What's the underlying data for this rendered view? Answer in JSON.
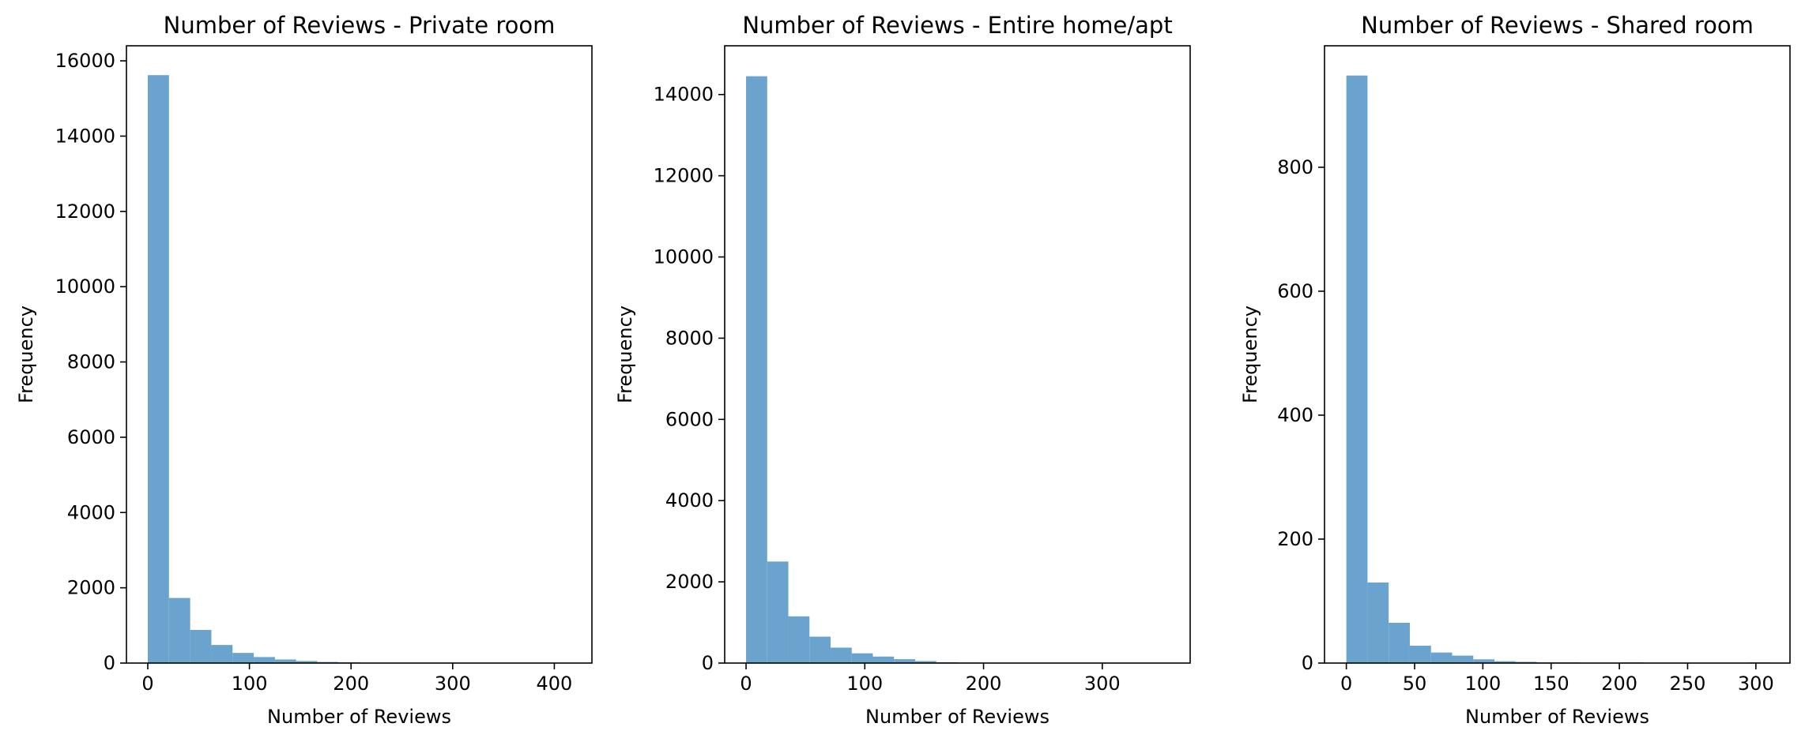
{
  "chart_data": [
    {
      "type": "bar",
      "title": "Number of Reviews - Private room",
      "xlabel": "Number of Reviews",
      "ylabel": "Frequency",
      "xlim": [
        -21,
        437
      ],
      "ylim": [
        0,
        16400
      ],
      "xticks": [
        0,
        100,
        200,
        300,
        400
      ],
      "yticks": [
        0,
        2000,
        4000,
        6000,
        8000,
        10000,
        12000,
        14000,
        16000
      ],
      "bin_width": 20.85,
      "bins_start": 0,
      "values": [
        15620,
        1730,
        880,
        480,
        270,
        160,
        95,
        55,
        30,
        18,
        10,
        6,
        4,
        3,
        2,
        1,
        1,
        1,
        0,
        1
      ],
      "color": "#6aa3cd"
    },
    {
      "type": "bar",
      "title": "Number of Reviews - Entire home/apt",
      "xlabel": "Number of Reviews",
      "ylabel": "Frequency",
      "xlim": [
        -18,
        374
      ],
      "ylim": [
        0,
        15200
      ],
      "xticks": [
        0,
        100,
        200,
        300
      ],
      "yticks": [
        0,
        2000,
        4000,
        6000,
        8000,
        10000,
        12000,
        14000
      ],
      "bin_width": 17.8,
      "bins_start": 0,
      "values": [
        14450,
        2500,
        1150,
        650,
        380,
        240,
        160,
        95,
        50,
        20,
        12,
        8,
        5,
        3,
        2,
        1,
        1,
        1,
        0,
        1
      ],
      "color": "#6aa3cd"
    },
    {
      "type": "bar",
      "title": "Number of Reviews - Shared room",
      "xlabel": "Number of Reviews",
      "ylabel": "Frequency",
      "xlim": [
        -16,
        325
      ],
      "ylim": [
        0,
        996
      ],
      "xticks": [
        0,
        50,
        100,
        150,
        200,
        250,
        300
      ],
      "yticks": [
        0,
        200,
        400,
        600,
        800
      ],
      "bin_width": 15.5,
      "bins_start": 0,
      "values": [
        948,
        130,
        65,
        28,
        17,
        12,
        6,
        3,
        2,
        1,
        1,
        0,
        0,
        1,
        0,
        0,
        0,
        0,
        0,
        1
      ],
      "color": "#6aa3cd"
    }
  ]
}
